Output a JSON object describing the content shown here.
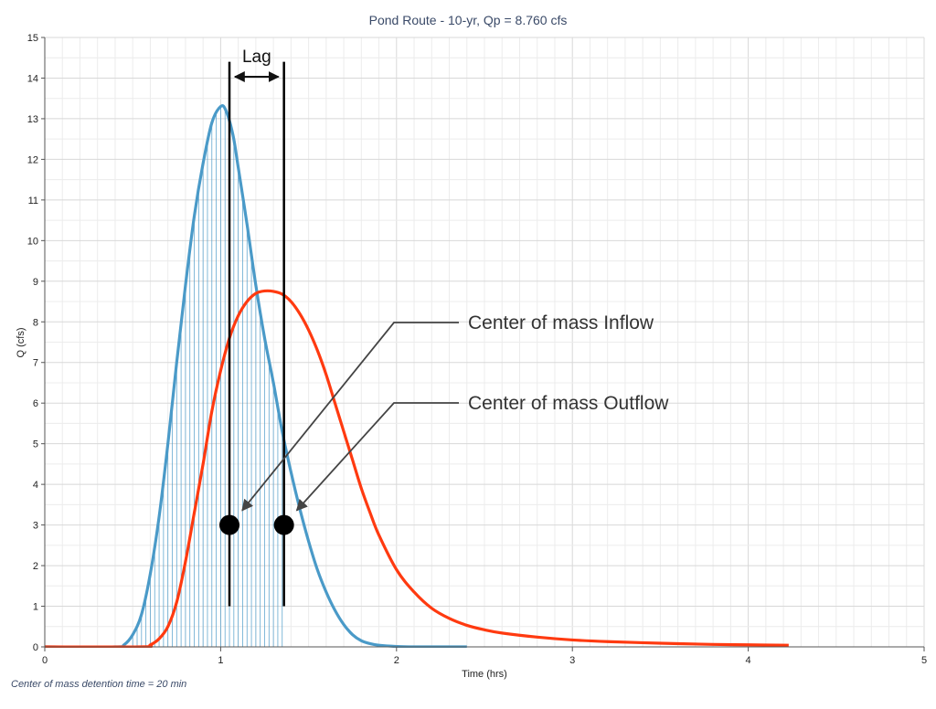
{
  "chart_data": {
    "type": "line",
    "title": "Pond Route - 10-yr, Qp = 8.760 cfs",
    "xlabel": "Time (hrs)",
    "ylabel": "Q (cfs)",
    "xlim": [
      0,
      5
    ],
    "ylim": [
      0,
      15
    ],
    "x_ticks": [
      "0",
      "1",
      "2",
      "3",
      "4",
      "5"
    ],
    "y_ticks": [
      "0",
      "1",
      "2",
      "3",
      "4",
      "5",
      "6",
      "7",
      "8",
      "9",
      "10",
      "11",
      "12",
      "13",
      "14",
      "15"
    ],
    "grid": true,
    "series": [
      {
        "color": "#4a9ac8",
        "x": [
          0,
          0.4,
          0.45,
          0.5,
          0.55,
          0.6,
          0.65,
          0.7,
          0.75,
          0.8,
          0.85,
          0.9,
          0.95,
          1.0,
          1.03,
          1.07,
          1.1,
          1.15,
          1.2,
          1.25,
          1.3,
          1.35,
          1.4,
          1.45,
          1.5,
          1.55,
          1.6,
          1.65,
          1.7,
          1.75,
          1.8,
          1.85,
          1.9,
          2.0,
          2.1,
          2.2,
          2.4
        ],
        "y": [
          0,
          0,
          0.05,
          0.3,
          0.8,
          1.8,
          3.2,
          5.0,
          7.0,
          8.9,
          10.6,
          11.9,
          12.9,
          13.3,
          13.2,
          12.6,
          11.8,
          10.4,
          8.9,
          7.6,
          6.5,
          5.3,
          4.3,
          3.4,
          2.6,
          1.9,
          1.35,
          0.9,
          0.55,
          0.3,
          0.15,
          0.08,
          0.04,
          0.01,
          0,
          0,
          0
        ]
      },
      {
        "color": "#ff3a10",
        "x": [
          0,
          0.55,
          0.6,
          0.65,
          0.7,
          0.75,
          0.8,
          0.85,
          0.9,
          0.95,
          1.0,
          1.05,
          1.1,
          1.15,
          1.2,
          1.25,
          1.3,
          1.35,
          1.4,
          1.45,
          1.5,
          1.55,
          1.6,
          1.65,
          1.7,
          1.75,
          1.8,
          1.85,
          1.9,
          2.0,
          2.1,
          2.2,
          2.3,
          2.4,
          2.5,
          2.6,
          2.8,
          3.0,
          3.2,
          3.5,
          3.8,
          4.0,
          4.23
        ],
        "y": [
          0,
          0,
          0.05,
          0.2,
          0.5,
          1.1,
          2.1,
          3.3,
          4.5,
          5.8,
          6.8,
          7.6,
          8.15,
          8.5,
          8.7,
          8.76,
          8.75,
          8.68,
          8.5,
          8.2,
          7.8,
          7.3,
          6.7,
          6.0,
          5.3,
          4.6,
          3.9,
          3.3,
          2.75,
          1.9,
          1.35,
          0.95,
          0.7,
          0.53,
          0.42,
          0.34,
          0.24,
          0.17,
          0.13,
          0.09,
          0.06,
          0.05,
          0.04
        ]
      }
    ],
    "center_of_mass": [
      {
        "label": "Center of mass Inflow",
        "x": 1.05,
        "y": 3.0
      },
      {
        "label": "Center of mass Outflow",
        "x": 1.36,
        "y": 3.0
      }
    ],
    "lag_label": "Lag",
    "lag_line_y_top": 14.4,
    "lag_line_y_bottom": 1.0,
    "footnote": "Center of mass detention time = 20 min"
  }
}
